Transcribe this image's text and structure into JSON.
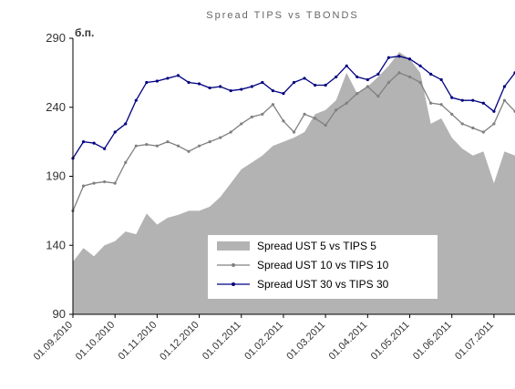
{
  "chart_data": {
    "type": "line",
    "title": "Spread TIPS vs TBONDS",
    "ylabel": "б.п.",
    "categories": [
      "01.09.2010",
      null,
      null,
      null,
      "01.10.2010",
      null,
      null,
      null,
      "01.11.2010",
      null,
      null,
      null,
      "01.12.2010",
      null,
      null,
      null,
      "01.01.2011",
      null,
      null,
      null,
      "01.02.2011",
      null,
      null,
      null,
      "01.03.2011",
      null,
      null,
      null,
      "01.04.2011",
      null,
      null,
      null,
      "01.05.2011",
      null,
      null,
      null,
      "01.06.2011",
      null,
      null,
      null,
      "01.07.2011",
      null,
      null
    ],
    "series": [
      {
        "name": "Spread UST 5 vs TIPS 5",
        "kind": "area",
        "color": "#b3b3b3",
        "values": [
          128,
          138,
          132,
          140,
          143,
          150,
          148,
          163,
          155,
          160,
          162,
          165,
          165,
          168,
          175,
          185,
          195,
          200,
          205,
          212,
          215,
          218,
          222,
          235,
          238,
          245,
          265,
          250,
          255,
          262,
          270,
          280,
          275,
          265,
          228,
          232,
          218,
          210,
          205,
          208,
          185,
          208,
          205
        ]
      },
      {
        "name": "Spread UST 10 vs TIPS 10",
        "kind": "line",
        "color": "#808080",
        "values": [
          165,
          183,
          185,
          186,
          185,
          200,
          212,
          213,
          212,
          215,
          212,
          208,
          212,
          215,
          218,
          222,
          228,
          233,
          235,
          242,
          230,
          222,
          235,
          232,
          227,
          238,
          243,
          250,
          255,
          248,
          258,
          265,
          262,
          258,
          243,
          242,
          235,
          228,
          225,
          222,
          228,
          245,
          237
        ]
      },
      {
        "name": "Spread UST 30 vs TIPS 30",
        "kind": "line",
        "color": "#000080",
        "values": [
          203,
          215,
          214,
          210,
          222,
          228,
          245,
          258,
          259,
          261,
          263,
          258,
          257,
          254,
          255,
          252,
          253,
          255,
          258,
          252,
          250,
          258,
          261,
          256,
          256,
          262,
          270,
          262,
          260,
          264,
          276,
          277,
          275,
          270,
          264,
          260,
          247,
          245,
          245,
          243,
          237,
          255,
          265
        ]
      }
    ],
    "ylim": [
      90,
      290
    ],
    "yticks": [
      90,
      140,
      190,
      240,
      290
    ],
    "grid": false,
    "legend": "lower center"
  }
}
